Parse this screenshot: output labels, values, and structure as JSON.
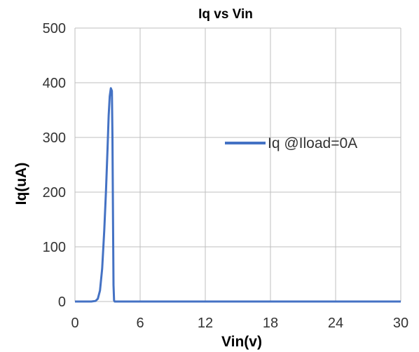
{
  "chart_data": {
    "type": "line",
    "title": "Iq vs Vin",
    "xlabel": "Vin(v)",
    "ylabel": "Iq(uA)",
    "xlim": [
      0,
      30
    ],
    "ylim": [
      0,
      500
    ],
    "xticks": [
      0,
      6,
      12,
      18,
      24,
      30
    ],
    "yticks": [
      0,
      100,
      200,
      300,
      400,
      500
    ],
    "grid": true,
    "legend_position": "right",
    "series": [
      {
        "name": "Iq @Iload=0A",
        "color": "#4472c4",
        "x": [
          0,
          1.5,
          1.9,
          2.1,
          2.3,
          2.5,
          2.7,
          2.85,
          3.0,
          3.1,
          3.2,
          3.3,
          3.4,
          3.45,
          3.5,
          3.55,
          3.6,
          3.65,
          4.0,
          10,
          20,
          30
        ],
        "y": [
          0,
          0,
          1,
          5,
          20,
          60,
          130,
          200,
          280,
          340,
          375,
          390,
          385,
          300,
          150,
          30,
          2,
          0,
          0,
          0,
          0,
          0
        ]
      }
    ]
  }
}
